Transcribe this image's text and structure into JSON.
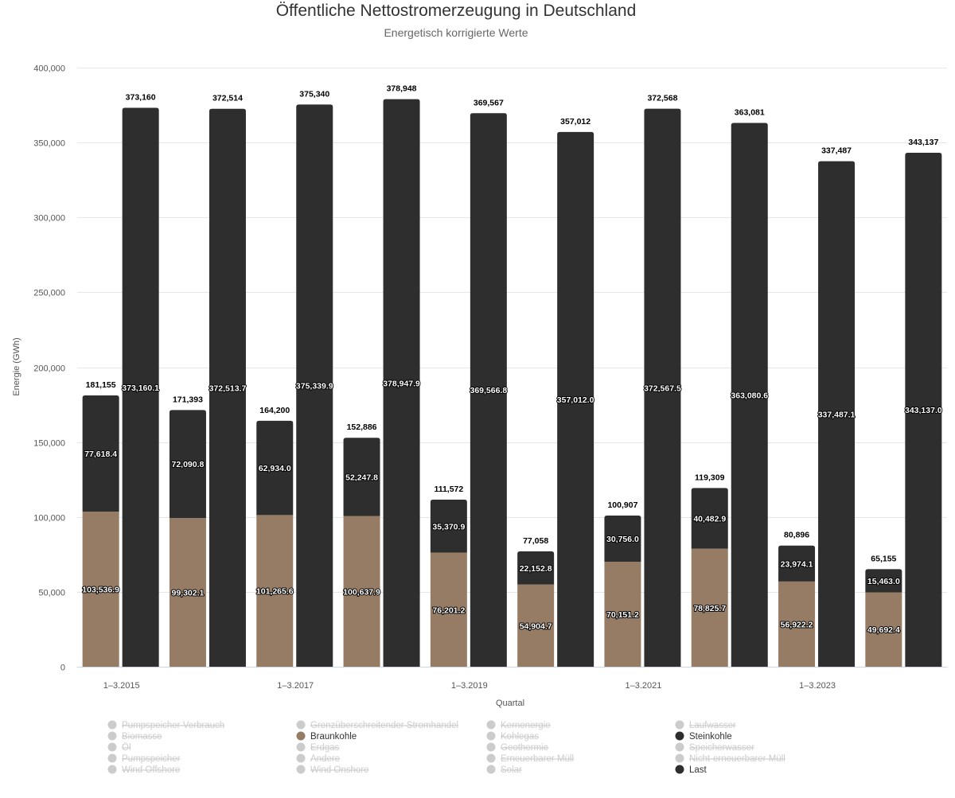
{
  "chart_data": {
    "type": "bar",
    "title": "Öffentliche Nettostromerzeugung in Deutschland",
    "subtitle": "Energetisch korrigierte Werte",
    "xlabel": "Quartal",
    "ylabel": "Energie (GWh)",
    "ylim": [
      0,
      400000
    ],
    "yticks": [
      0,
      50000,
      100000,
      150000,
      200000,
      250000,
      300000,
      350000,
      400000
    ],
    "ytick_labels": [
      "0",
      "50,000",
      "100,000",
      "150,000",
      "200,000",
      "250,000",
      "300,000",
      "350,000",
      "400,000"
    ],
    "categories": [
      "1–3.2015",
      "1–3.2016",
      "1–3.2017",
      "1–3.2018",
      "1–3.2019",
      "1–3.2020",
      "1–3.2021",
      "1–3.2022",
      "1–3.2023",
      "1–3.2024"
    ],
    "visible_x_labels": [
      "1–3.2015",
      "1–3.2017",
      "1–3.2019",
      "1–3.2021",
      "1–3.2023"
    ],
    "stacks": [
      {
        "stack": "erzeugung",
        "series": [
          {
            "name": "Braunkohle",
            "color": "#967c64",
            "values": [
              103536.9,
              99302.1,
              101265.6,
              100637.9,
              76201.2,
              54904.7,
              70151.2,
              78825.7,
              56922.2,
              49692.4
            ],
            "labels": [
              "103,536.9",
              "99,302.1",
              "101,265.6",
              "100,637.9",
              "76,201.2",
              "54,904.7",
              "70,151.2",
              "78,825.7",
              "56,922.2",
              "49,692.4"
            ]
          },
          {
            "name": "Steinkohle",
            "color": "#2e2e2e",
            "values": [
              77618.4,
              72090.8,
              62934.0,
              52247.8,
              35370.9,
              22152.8,
              30756.0,
              40482.9,
              23974.1,
              15463.0
            ],
            "labels": [
              "77,618.4",
              "72,090.8",
              "62,934.0",
              "52,247.8",
              "35,370.9",
              "22,152.8",
              "30,756.0",
              "40,482.9",
              "23,974.1",
              "15,463.0"
            ]
          }
        ],
        "totals": [
          181155,
          171393,
          164200,
          152886,
          111572,
          77058,
          100907,
          119309,
          80896,
          65155
        ],
        "total_labels": [
          "181,155",
          "171,393",
          "164,200",
          "152,886",
          "111,572",
          "77,058",
          "100,907",
          "119,309",
          "80,896",
          "65,155"
        ]
      },
      {
        "stack": "last",
        "series": [
          {
            "name": "Last",
            "color": "#2e2e2e",
            "values": [
              373160.1,
              372513.7,
              375339.9,
              378947.9,
              369566.8,
              357012.0,
              372567.5,
              363080.6,
              337487.1,
              343137.0
            ],
            "labels": [
              "373,160.1",
              "372,513.7",
              "375,339.9",
              "378,947.9",
              "369,566.8",
              "357,012.0",
              "372,567.5",
              "363,080.6",
              "337,487.1",
              "343,137.0"
            ]
          }
        ],
        "totals": [
          373160,
          372514,
          375340,
          378948,
          369567,
          357012,
          372568,
          363081,
          337487,
          343137
        ],
        "total_labels": [
          "373,160",
          "372,514",
          "375,340",
          "378,948",
          "369,567",
          "357,012",
          "372,568",
          "363,081",
          "337,487",
          "343,137"
        ]
      }
    ],
    "legend": {
      "placement": "bottom",
      "columns": [
        [
          {
            "name": "Pumpspeicher Verbrauch",
            "active": false,
            "color": "#cccccc"
          },
          {
            "name": "Biomasse",
            "active": false,
            "color": "#cccccc"
          },
          {
            "name": "Öl",
            "active": false,
            "color": "#cccccc"
          },
          {
            "name": "Pumpspeicher",
            "active": false,
            "color": "#cccccc"
          },
          {
            "name": "Wind Offshore",
            "active": false,
            "color": "#cccccc"
          }
        ],
        [
          {
            "name": "Grenzüberschreitender Stromhandel",
            "active": false,
            "color": "#cccccc"
          },
          {
            "name": "Braunkohle",
            "active": true,
            "color": "#967c64"
          },
          {
            "name": "Erdgas",
            "active": false,
            "color": "#cccccc"
          },
          {
            "name": "Andere",
            "active": false,
            "color": "#cccccc"
          },
          {
            "name": "Wind Onshore",
            "active": false,
            "color": "#cccccc"
          }
        ],
        [
          {
            "name": "Kernenergie",
            "active": false,
            "color": "#cccccc"
          },
          {
            "name": "Kohlegas",
            "active": false,
            "color": "#cccccc"
          },
          {
            "name": "Geothermie",
            "active": false,
            "color": "#cccccc"
          },
          {
            "name": "Erneuerbarer Müll",
            "active": false,
            "color": "#cccccc"
          },
          {
            "name": "Solar",
            "active": false,
            "color": "#cccccc"
          }
        ],
        [
          {
            "name": "Laufwasser",
            "active": false,
            "color": "#cccccc"
          },
          {
            "name": "Steinkohle",
            "active": true,
            "color": "#2e2e2e"
          },
          {
            "name": "Speicherwasser",
            "active": false,
            "color": "#cccccc"
          },
          {
            "name": "Nicht-erneuerbarer Müll",
            "active": false,
            "color": "#cccccc"
          },
          {
            "name": "Last",
            "active": true,
            "color": "#2e2e2e"
          }
        ]
      ]
    }
  }
}
